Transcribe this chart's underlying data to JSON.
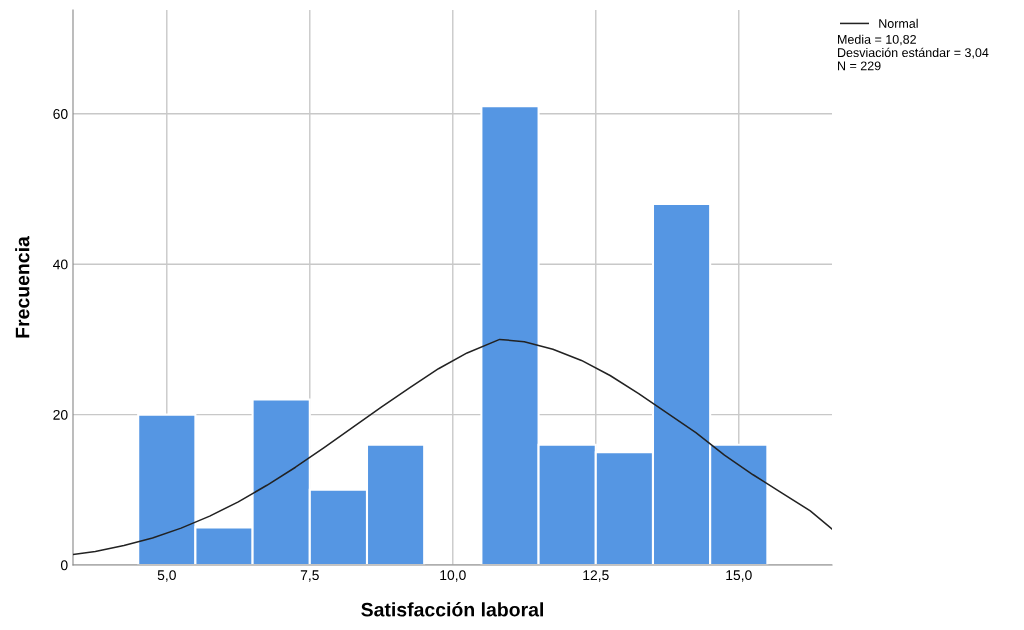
{
  "chart_data": {
    "type": "histogram",
    "xlabel": "Satisfacción laboral",
    "ylabel": "Frecuencia",
    "bins": [
      4.5,
      5.5,
      6.5,
      7.5,
      8.5,
      9.5,
      10.5,
      11.5,
      12.5,
      13.5,
      14.5,
      15.5
    ],
    "values": [
      20,
      5,
      22,
      10,
      16,
      0,
      61,
      16,
      15,
      48,
      16
    ],
    "color": "#5596e3",
    "series": [
      {
        "name": "Normal",
        "type": "line",
        "color": "#222222",
        "x": [
          3.36,
          3.75,
          4.25,
          4.75,
          5.25,
          5.75,
          6.25,
          6.75,
          7.25,
          7.75,
          8.25,
          8.75,
          9.25,
          9.75,
          10.25,
          10.82,
          11.25,
          11.75,
          12.25,
          12.75,
          13.25,
          13.75,
          14.25,
          14.75,
          15.25,
          15.75,
          16.25,
          16.63
        ],
        "values": [
          1.4,
          1.8,
          2.6,
          3.6,
          4.9,
          6.5,
          8.4,
          10.6,
          13.0,
          15.6,
          18.3,
          21.0,
          23.6,
          26.1,
          28.2,
          30.0,
          29.7,
          28.7,
          27.2,
          25.2,
          22.8,
          20.2,
          17.6,
          14.6,
          12.0,
          9.6,
          7.2,
          4.8
        ]
      }
    ],
    "xlim": [
      3.36,
      16.63
    ],
    "ylim": [
      0,
      73.8
    ],
    "xticks": [
      {
        "value": 5,
        "label": "5,0"
      },
      {
        "value": 7.5,
        "label": "7,5"
      },
      {
        "value": 10,
        "label": "10,0"
      },
      {
        "value": 12.5,
        "label": "12,5"
      },
      {
        "value": 15,
        "label": "15,0"
      }
    ],
    "yticks": [
      0,
      20,
      40,
      60
    ],
    "grid": true,
    "legend": "top right",
    "annotations": [
      "Media = 10,82",
      "Desviación estándar = 3,04",
      "N = 229"
    ]
  }
}
